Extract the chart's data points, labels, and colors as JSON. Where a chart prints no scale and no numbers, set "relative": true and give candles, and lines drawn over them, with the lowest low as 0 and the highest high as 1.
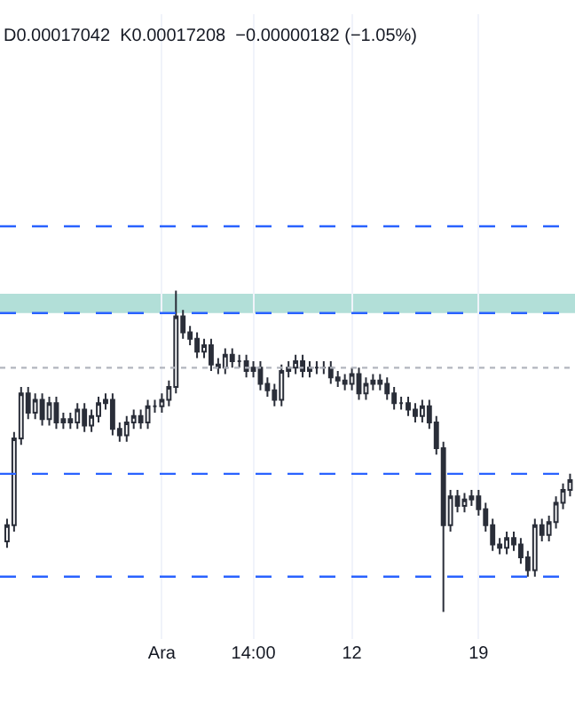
{
  "chart_data": {
    "type": "candlestick",
    "relative": true,
    "color": "#2a2e39",
    "grid": "x",
    "annotations": [
      "D0.00017042  K0.00017208  −0.00000182 (−1.05%)"
    ],
    "categories": [
      null,
      null,
      null,
      null,
      null,
      null,
      null,
      null,
      null,
      null,
      null,
      null,
      null,
      null,
      null,
      null,
      null,
      null,
      null,
      null,
      null,
      null,
      "Ara",
      null,
      null,
      null,
      null,
      null,
      null,
      null,
      null,
      null,
      null,
      null,
      null,
      "14:00",
      null,
      null,
      null,
      null,
      null,
      null,
      null,
      null,
      null,
      null,
      null,
      null,
      null,
      "12",
      null,
      null,
      null,
      null,
      null,
      null,
      null,
      null,
      null,
      null,
      null,
      null,
      null,
      null,
      null,
      null,
      null,
      "19",
      null,
      null,
      null,
      null,
      null,
      null,
      null,
      null,
      null,
      null,
      null,
      null,
      null
    ],
    "ohlc": [
      [
        0.22,
        0.29,
        0.2,
        0.27
      ],
      [
        0.27,
        0.56,
        0.25,
        0.54
      ],
      [
        0.54,
        0.7,
        0.52,
        0.68
      ],
      [
        0.68,
        0.7,
        0.6,
        0.62
      ],
      [
        0.62,
        0.68,
        0.6,
        0.66
      ],
      [
        0.66,
        0.68,
        0.58,
        0.6
      ],
      [
        0.6,
        0.67,
        0.58,
        0.65
      ],
      [
        0.65,
        0.67,
        0.57,
        0.59
      ],
      [
        0.59,
        0.62,
        0.57,
        0.6
      ],
      [
        0.6,
        0.62,
        0.57,
        0.59
      ],
      [
        0.59,
        0.65,
        0.57,
        0.63
      ],
      [
        0.63,
        0.65,
        0.56,
        0.58
      ],
      [
        0.58,
        0.63,
        0.56,
        0.61
      ],
      [
        0.61,
        0.67,
        0.59,
        0.65
      ],
      [
        0.65,
        0.68,
        0.63,
        0.66
      ],
      [
        0.66,
        0.68,
        0.55,
        0.57
      ],
      [
        0.57,
        0.59,
        0.53,
        0.55
      ],
      [
        0.55,
        0.61,
        0.53,
        0.59
      ],
      [
        0.59,
        0.63,
        0.57,
        0.61
      ],
      [
        0.61,
        0.63,
        0.57,
        0.59
      ],
      [
        0.59,
        0.66,
        0.57,
        0.64
      ],
      [
        0.64,
        0.66,
        0.62,
        0.64
      ],
      [
        0.64,
        0.68,
        0.62,
        0.66
      ],
      [
        0.66,
        0.72,
        0.64,
        0.7
      ],
      [
        0.7,
        1.0,
        0.68,
        0.92
      ],
      [
        0.92,
        0.94,
        0.85,
        0.87
      ],
      [
        0.87,
        0.89,
        0.83,
        0.85
      ],
      [
        0.85,
        0.87,
        0.79,
        0.81
      ],
      [
        0.81,
        0.85,
        0.79,
        0.83
      ],
      [
        0.83,
        0.85,
        0.75,
        0.77
      ],
      [
        0.77,
        0.79,
        0.74,
        0.76
      ],
      [
        0.76,
        0.82,
        0.74,
        0.8
      ],
      [
        0.8,
        0.82,
        0.76,
        0.78
      ],
      [
        0.78,
        0.8,
        0.76,
        0.78
      ],
      [
        0.78,
        0.8,
        0.73,
        0.75
      ],
      [
        0.75,
        0.78,
        0.73,
        0.76
      ],
      [
        0.76,
        0.78,
        0.69,
        0.71
      ],
      [
        0.71,
        0.73,
        0.67,
        0.69
      ],
      [
        0.69,
        0.71,
        0.64,
        0.66
      ],
      [
        0.66,
        0.77,
        0.64,
        0.75
      ],
      [
        0.75,
        0.78,
        0.73,
        0.76
      ],
      [
        0.76,
        0.8,
        0.74,
        0.78
      ],
      [
        0.78,
        0.8,
        0.73,
        0.75
      ],
      [
        0.75,
        0.78,
        0.73,
        0.76
      ],
      [
        0.76,
        0.78,
        0.74,
        0.76
      ],
      [
        0.76,
        0.78,
        0.74,
        0.76
      ],
      [
        0.76,
        0.78,
        0.71,
        0.73
      ],
      [
        0.73,
        0.75,
        0.7,
        0.72
      ],
      [
        0.72,
        0.74,
        0.69,
        0.71
      ],
      [
        0.71,
        0.76,
        0.69,
        0.74
      ],
      [
        0.74,
        0.76,
        0.66,
        0.68
      ],
      [
        0.68,
        0.73,
        0.66,
        0.71
      ],
      [
        0.71,
        0.74,
        0.69,
        0.72
      ],
      [
        0.72,
        0.74,
        0.69,
        0.71
      ],
      [
        0.71,
        0.73,
        0.66,
        0.68
      ],
      [
        0.68,
        0.7,
        0.63,
        0.65
      ],
      [
        0.65,
        0.67,
        0.63,
        0.65
      ],
      [
        0.65,
        0.67,
        0.61,
        0.63
      ],
      [
        0.63,
        0.65,
        0.59,
        0.61
      ],
      [
        0.61,
        0.66,
        0.59,
        0.64
      ],
      [
        0.64,
        0.66,
        0.57,
        0.59
      ],
      [
        0.59,
        0.61,
        0.49,
        0.51
      ],
      [
        0.51,
        0.53,
        0.0,
        0.27
      ],
      [
        0.27,
        0.38,
        0.25,
        0.36
      ],
      [
        0.36,
        0.38,
        0.31,
        0.33
      ],
      [
        0.33,
        0.37,
        0.31,
        0.35
      ],
      [
        0.35,
        0.38,
        0.33,
        0.36
      ],
      [
        0.36,
        0.38,
        0.3,
        0.32
      ],
      [
        0.32,
        0.34,
        0.25,
        0.27
      ],
      [
        0.27,
        0.29,
        0.19,
        0.21
      ],
      [
        0.21,
        0.23,
        0.18,
        0.2
      ],
      [
        0.2,
        0.25,
        0.18,
        0.23
      ],
      [
        0.23,
        0.25,
        0.19,
        0.21
      ],
      [
        0.21,
        0.23,
        0.15,
        0.17
      ],
      [
        0.17,
        0.19,
        0.11,
        0.13
      ],
      [
        0.13,
        0.29,
        0.11,
        0.27
      ],
      [
        0.27,
        0.29,
        0.22,
        0.24
      ],
      [
        0.24,
        0.3,
        0.22,
        0.28
      ],
      [
        0.28,
        0.36,
        0.26,
        0.34
      ],
      [
        0.34,
        0.4,
        0.32,
        0.38
      ],
      [
        0.38,
        0.43,
        0.36,
        0.41
      ]
    ],
    "ref_lines": [
      {
        "axis": "y",
        "value": 1.2,
        "color": "#2962ff",
        "line_style": "dashed"
      },
      {
        "axis": "y",
        "value": 0.93,
        "color": "#2962ff",
        "line_style": "dashed"
      },
      {
        "axis": "y",
        "value": 0.76,
        "color": "#b2b5be",
        "line_style": "dotted"
      },
      {
        "axis": "y",
        "value": 0.43,
        "color": "#2962ff",
        "line_style": "dashed"
      },
      {
        "axis": "y",
        "value": 0.11,
        "color": "#2962ff",
        "line_style": "dashed"
      }
    ],
    "bands": [
      {
        "axis": "y",
        "from": 0.93,
        "to": 0.99,
        "color": "#b2dfd8"
      }
    ]
  }
}
